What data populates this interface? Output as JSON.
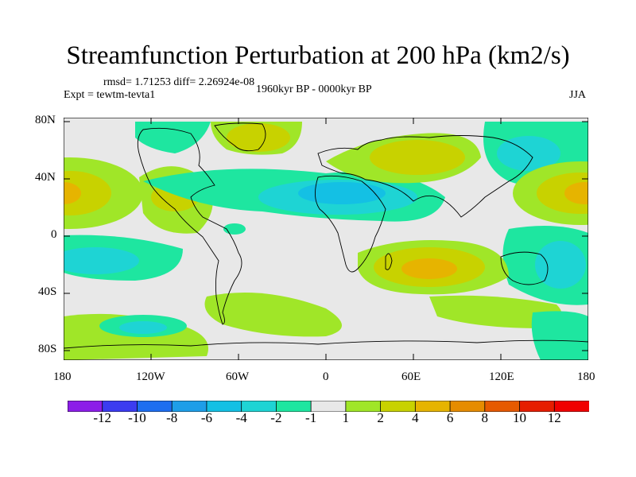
{
  "title": "Streamfunction Perturbation at 200 hPa (km2/s)",
  "subtitle_left_top": "rmsd= 1.71253 diff= 2.26924e-08",
  "subtitle_left": "Expt = tewtm-tevta1",
  "subtitle_center": "1960kyr BP - 0000kyr BP",
  "subtitle_right": "JJA",
  "y_ticks": [
    "80N",
    "40N",
    "0",
    "40S",
    "80S"
  ],
  "x_ticks": [
    "180",
    "120W",
    "60W",
    "0",
    "60E",
    "120E",
    "180"
  ],
  "colorbar": {
    "labels": [
      "-12",
      "-10",
      "-8",
      "-6",
      "-4",
      "-2",
      "-1",
      "1",
      "2",
      "4",
      "6",
      "8",
      "10",
      "12"
    ],
    "colors": [
      "#8c1ee8",
      "#3c3cf0",
      "#1e6ef0",
      "#1e9ee8",
      "#14c0e4",
      "#1ed4d4",
      "#1ee6a0",
      "#e8e8e8",
      "#a0e628",
      "#c8d200",
      "#e6b400",
      "#e68c00",
      "#e65a00",
      "#e61e00",
      "#f00000"
    ]
  }
}
